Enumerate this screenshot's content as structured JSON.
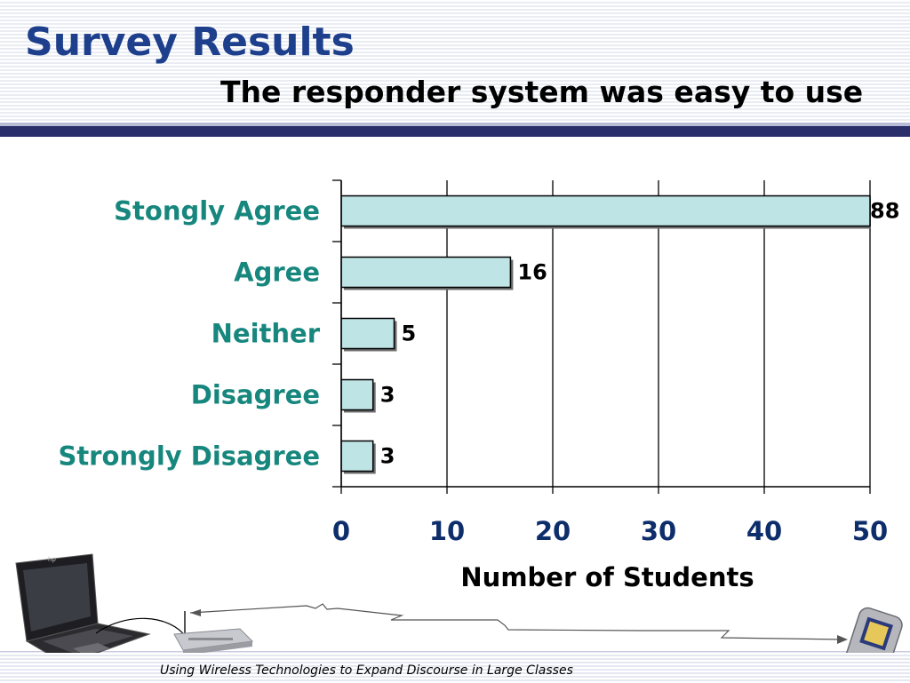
{
  "title": "Survey Results",
  "subtitle": "The responder system was easy to use",
  "footer": "Using Wireless Technologies to Expand Discourse in Large Classes",
  "colors": {
    "title": "#1d3f8c",
    "category_label": "#17877e",
    "tick_label": "#0d2d6b",
    "bar_fill": "#bfe4e6",
    "header_rule": "#2a2f6b"
  },
  "chart_data": {
    "type": "bar",
    "orientation": "horizontal",
    "categories": [
      "Stongly Agree",
      "Agree",
      "Neither",
      "Disagree",
      "Strongly Disagree"
    ],
    "values": [
      88,
      16,
      5,
      3,
      3
    ],
    "value_labels": [
      "88",
      "16",
      "5",
      "3",
      "3"
    ],
    "xlim": [
      0,
      50
    ],
    "xticks": [
      "0",
      "10",
      "20",
      "30",
      "40",
      "50"
    ],
    "xlabel": "Number of Students",
    "ylabel": "",
    "grid": "vertical",
    "legend": "none"
  },
  "illustration": {
    "icons": [
      "laptop-icon",
      "wireless-router-icon",
      "pda-icon"
    ]
  }
}
